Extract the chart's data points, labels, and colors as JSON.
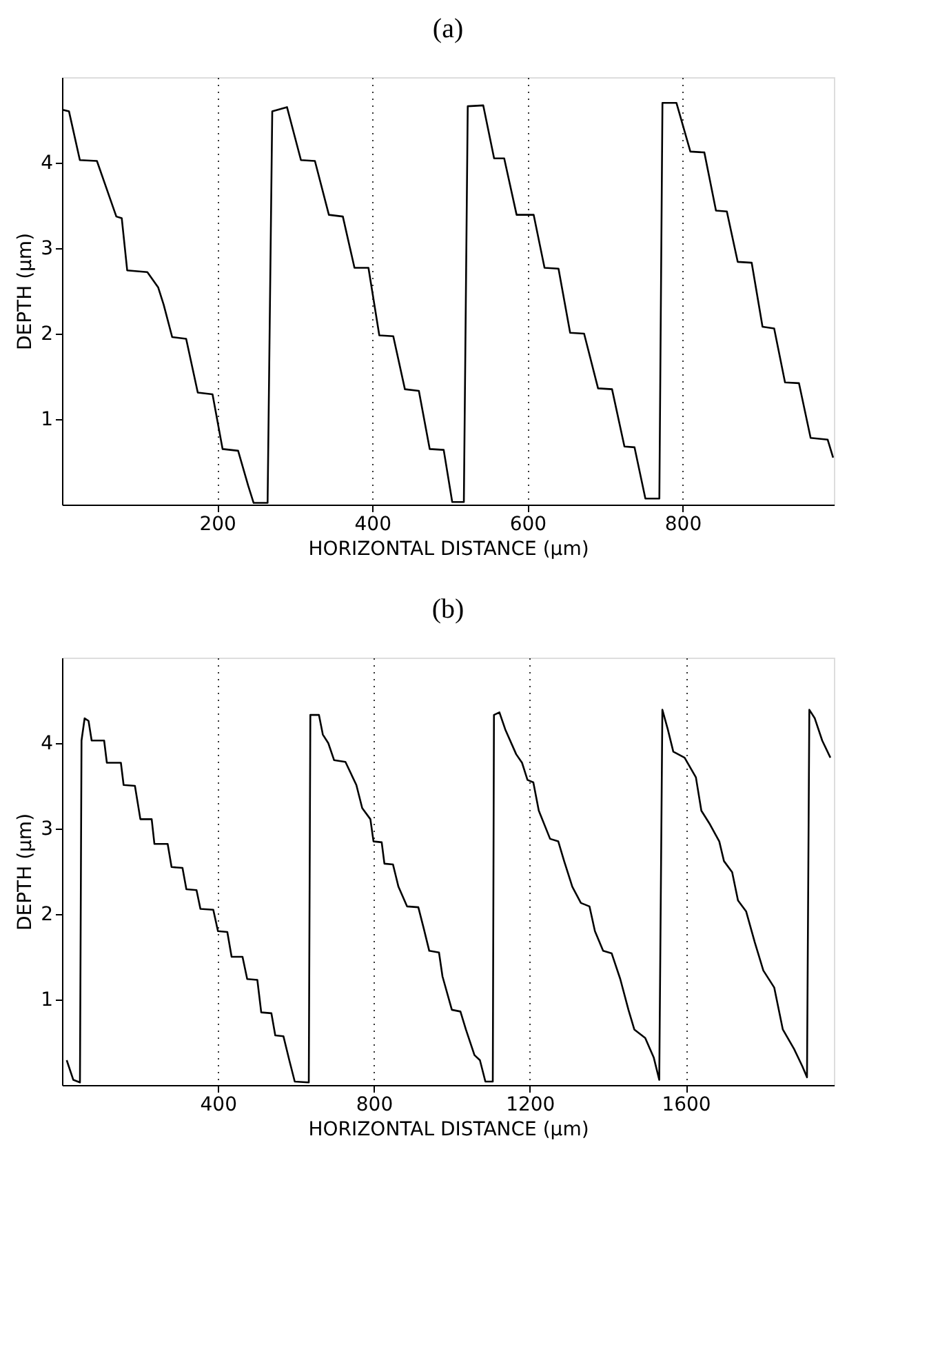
{
  "chart_data": [
    {
      "type": "line",
      "title": "(a)",
      "xlabel": "HORIZONTAL DISTANCE (µm)",
      "ylabel": "DEPTH (µm)",
      "xlim": [
        0,
        995
      ],
      "ylim": [
        0,
        5
      ],
      "xticks": [
        200,
        400,
        600,
        800
      ],
      "yticks": [
        1,
        2,
        3,
        4
      ],
      "grid": "x",
      "marker": "none",
      "line_style": "solid",
      "series": [
        {
          "color": "#000000",
          "x": [
            0,
            9,
            23,
            45,
            70,
            77,
            84,
            110,
            124,
            131,
            142,
            160,
            175,
            194,
            207,
            227,
            240,
            247,
            265,
            271,
            290,
            308,
            326,
            344,
            362,
            377,
            395,
            409,
            427,
            442,
            460,
            474,
            492,
            503,
            518,
            523,
            543,
            557,
            570,
            586,
            608,
            622,
            640,
            655,
            673,
            691,
            709,
            725,
            738,
            752,
            770,
            774,
            792,
            810,
            828,
            843,
            857,
            871,
            889,
            903,
            918,
            932,
            950,
            965,
            987,
            994
          ],
          "values": [
            4.62,
            4.6,
            4.03,
            4.02,
            3.37,
            3.35,
            2.74,
            2.72,
            2.54,
            2.34,
            1.96,
            1.94,
            1.31,
            1.29,
            0.65,
            0.63,
            0.22,
            0.02,
            0.02,
            4.6,
            4.65,
            4.03,
            4.02,
            3.39,
            3.37,
            2.77,
            2.77,
            1.98,
            1.97,
            1.35,
            1.33,
            0.65,
            0.64,
            0.03,
            0.03,
            4.66,
            4.67,
            4.05,
            4.05,
            3.39,
            3.39,
            2.77,
            2.76,
            2.01,
            2.0,
            1.36,
            1.35,
            0.68,
            0.67,
            0.07,
            0.07,
            4.7,
            4.7,
            4.13,
            4.12,
            3.44,
            3.43,
            2.84,
            2.83,
            2.08,
            2.06,
            1.43,
            1.42,
            0.78,
            0.76,
            0.55
          ]
        }
      ]
    },
    {
      "type": "line",
      "title": "(b)",
      "xlabel": "HORIZONTAL DISTANCE (µm)",
      "ylabel": "DEPTH (µm)",
      "xlim": [
        0,
        1980
      ],
      "ylim": [
        0,
        5
      ],
      "xticks": [
        400,
        800,
        1200,
        1600
      ],
      "yticks": [
        1,
        2,
        3,
        4
      ],
      "grid": "x",
      "marker": "none",
      "line_style": "solid",
      "series": [
        {
          "color": "#000000",
          "x": [
            12,
            29,
            46,
            50,
            58,
            68,
            76,
            108,
            115,
            151,
            158,
            187,
            201,
            230,
            237,
            271,
            281,
            309,
            319,
            345,
            355,
            388,
            400,
            424,
            435,
            463,
            475,
            501,
            511,
            537,
            547,
            568,
            583,
            597,
            633,
            637,
            659,
            669,
            683,
            698,
            727,
            755,
            770,
            791,
            799,
            820,
            827,
            849,
            863,
            885,
            914,
            928,
            942,
            967,
            976,
            1000,
            1022,
            1036,
            1058,
            1072,
            1086,
            1105,
            1108,
            1122,
            1137,
            1165,
            1180,
            1194,
            1209,
            1223,
            1252,
            1273,
            1288,
            1309,
            1331,
            1353,
            1367,
            1388,
            1410,
            1432,
            1453,
            1468,
            1496,
            1518,
            1532,
            1540,
            1554,
            1568,
            1597,
            1626,
            1640,
            1662,
            1686,
            1698,
            1719,
            1734,
            1755,
            1777,
            1799,
            1827,
            1849,
            1878,
            1899,
            1911,
            1917,
            1931,
            1950,
            1971
          ],
          "values": [
            0.29,
            0.06,
            0.03,
            4.03,
            4.29,
            4.26,
            4.03,
            4.03,
            3.77,
            3.77,
            3.51,
            3.5,
            3.11,
            3.11,
            2.82,
            2.82,
            2.55,
            2.54,
            2.29,
            2.28,
            2.06,
            2.05,
            1.8,
            1.79,
            1.5,
            1.5,
            1.24,
            1.23,
            0.85,
            0.84,
            0.58,
            0.57,
            0.29,
            0.04,
            0.03,
            4.33,
            4.33,
            4.1,
            4.0,
            3.8,
            3.78,
            3.51,
            3.24,
            3.11,
            2.85,
            2.84,
            2.59,
            2.58,
            2.32,
            2.09,
            2.08,
            1.83,
            1.57,
            1.55,
            1.27,
            0.88,
            0.86,
            0.65,
            0.35,
            0.29,
            0.04,
            0.04,
            4.33,
            4.36,
            4.16,
            3.87,
            3.77,
            3.57,
            3.54,
            3.21,
            2.88,
            2.85,
            2.62,
            2.32,
            2.13,
            2.09,
            1.8,
            1.57,
            1.54,
            1.24,
            0.88,
            0.65,
            0.55,
            0.32,
            0.06,
            4.39,
            4.16,
            3.9,
            3.83,
            3.6,
            3.21,
            3.05,
            2.85,
            2.62,
            2.49,
            2.16,
            2.03,
            1.67,
            1.34,
            1.14,
            0.65,
            0.42,
            0.22,
            0.09,
            4.39,
            4.29,
            4.03,
            3.83
          ]
        }
      ]
    }
  ]
}
